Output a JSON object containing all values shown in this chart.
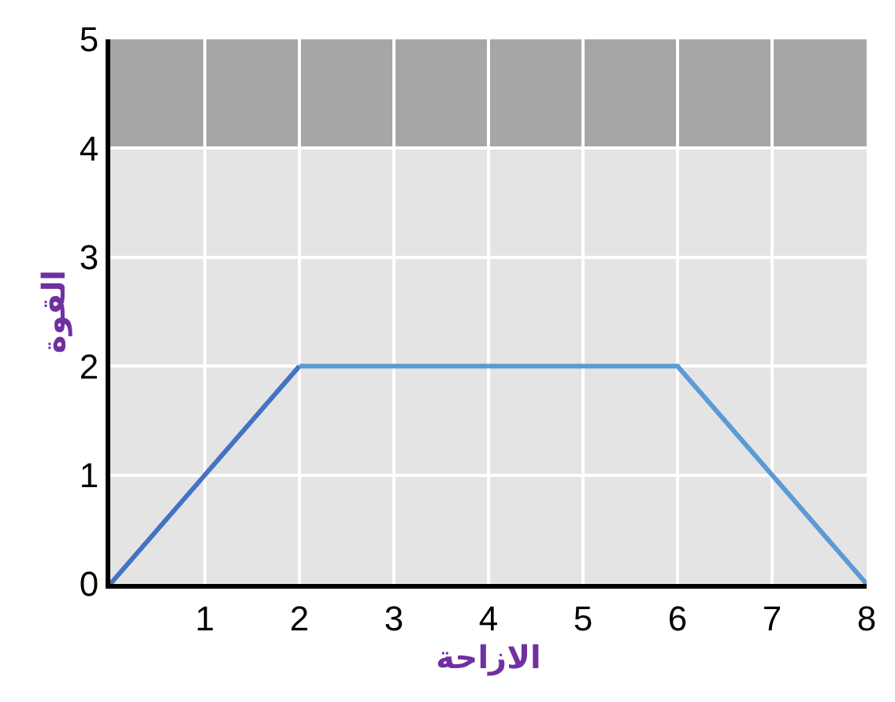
{
  "chart_data": {
    "type": "line",
    "xlabel": "الازاحة",
    "ylabel": "القوة",
    "xlim": [
      0,
      8
    ],
    "ylim": [
      0,
      5
    ],
    "xticks": [
      1,
      2,
      3,
      4,
      5,
      6,
      7,
      8
    ],
    "yticks": [
      0,
      1,
      2,
      3,
      4,
      5
    ],
    "grid": true,
    "legend": false,
    "marker": "none",
    "line_style": "solid",
    "series": [
      {
        "color": "#4472c4",
        "x": [
          0,
          2
        ],
        "values": [
          0,
          2
        ]
      },
      {
        "color": "#5b9bd5",
        "x": [
          2,
          6,
          8
        ],
        "values": [
          2,
          2,
          0
        ]
      }
    ],
    "bands": [
      {
        "axis": "y",
        "from": 4,
        "to": 5,
        "color": "#a6a6a6"
      }
    ]
  }
}
